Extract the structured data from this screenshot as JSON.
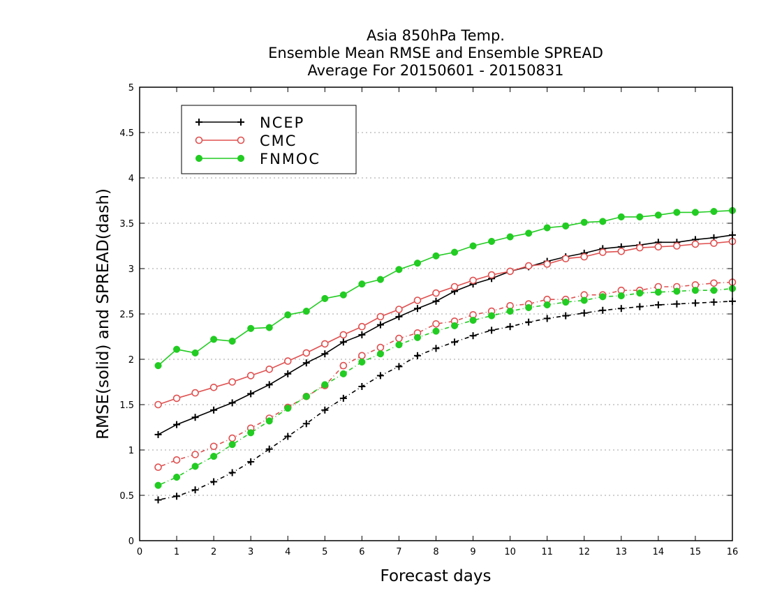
{
  "chart_data": {
    "type": "line",
    "title_lines": [
      "Asia 850hPa Temp.",
      "Ensemble Mean RMSE and Ensemble SPREAD",
      "Average For 20150601 - 20150831"
    ],
    "xlabel": "Forecast days",
    "ylabel": "RMSE(solid) and SPREAD(dash)",
    "xlim": [
      0,
      16
    ],
    "ylim": [
      0,
      5
    ],
    "x_ticks": [
      "0",
      "1",
      "2",
      "3",
      "4",
      "5",
      "6",
      "7",
      "8",
      "9",
      "10",
      "11",
      "12",
      "13",
      "14",
      "15",
      "16"
    ],
    "y_ticks": [
      "0",
      "0.5",
      "1",
      "1.5",
      "2",
      "2.5",
      "3",
      "3.5",
      "4",
      "4.5",
      "5"
    ],
    "grid": true,
    "legend_position": "top-left",
    "x": [
      0.5,
      1,
      1.5,
      2,
      2.5,
      3,
      3.5,
      4,
      4.5,
      5,
      5.5,
      6,
      6.5,
      7,
      7.5,
      8,
      8.5,
      9,
      9.5,
      10,
      10.5,
      11,
      11.5,
      12,
      12.5,
      13,
      13.5,
      14,
      14.5,
      15,
      15.5,
      16
    ],
    "series": [
      {
        "name": "NCEP",
        "color": "#000000",
        "marker": "plus",
        "rmse": [
          1.17,
          1.28,
          1.36,
          1.44,
          1.52,
          1.62,
          1.72,
          1.84,
          1.96,
          2.06,
          2.19,
          2.27,
          2.38,
          2.47,
          2.56,
          2.64,
          2.75,
          2.83,
          2.89,
          2.97,
          3.02,
          3.08,
          3.13,
          3.17,
          3.22,
          3.24,
          3.26,
          3.29,
          3.29,
          3.32,
          3.34,
          3.37
        ],
        "spread": [
          0.45,
          0.49,
          0.56,
          0.65,
          0.75,
          0.87,
          1.01,
          1.15,
          1.29,
          1.44,
          1.57,
          1.7,
          1.82,
          1.92,
          2.04,
          2.12,
          2.19,
          2.26,
          2.32,
          2.36,
          2.41,
          2.45,
          2.48,
          2.51,
          2.54,
          2.56,
          2.58,
          2.6,
          2.61,
          2.62,
          2.63,
          2.64
        ]
      },
      {
        "name": "CMC",
        "color": "#e05050",
        "marker": "open-circle",
        "rmse": [
          1.5,
          1.57,
          1.63,
          1.69,
          1.75,
          1.82,
          1.89,
          1.98,
          2.07,
          2.17,
          2.27,
          2.36,
          2.47,
          2.55,
          2.65,
          2.73,
          2.8,
          2.87,
          2.93,
          2.97,
          3.03,
          3.05,
          3.11,
          3.13,
          3.18,
          3.19,
          3.23,
          3.24,
          3.25,
          3.27,
          3.28,
          3.3
        ],
        "spread": [
          0.81,
          0.89,
          0.95,
          1.04,
          1.13,
          1.24,
          1.35,
          1.47,
          1.59,
          1.71,
          1.93,
          2.04,
          2.13,
          2.23,
          2.29,
          2.39,
          2.42,
          2.49,
          2.53,
          2.59,
          2.61,
          2.66,
          2.66,
          2.71,
          2.71,
          2.76,
          2.76,
          2.8,
          2.8,
          2.82,
          2.84,
          2.85
        ]
      },
      {
        "name": "FNMOC",
        "color": "#22cc22",
        "marker": "filled-circle",
        "rmse": [
          1.93,
          2.11,
          2.07,
          2.22,
          2.2,
          2.34,
          2.35,
          2.49,
          2.53,
          2.67,
          2.71,
          2.83,
          2.88,
          2.99,
          3.06,
          3.14,
          3.18,
          3.25,
          3.3,
          3.35,
          3.39,
          3.45,
          3.47,
          3.51,
          3.52,
          3.57,
          3.57,
          3.59,
          3.62,
          3.62,
          3.63,
          3.64
        ],
        "spread": [
          0.61,
          0.7,
          0.82,
          0.93,
          1.06,
          1.19,
          1.32,
          1.46,
          1.59,
          1.72,
          1.84,
          1.97,
          2.06,
          2.16,
          2.24,
          2.31,
          2.37,
          2.43,
          2.48,
          2.53,
          2.57,
          2.6,
          2.63,
          2.65,
          2.69,
          2.7,
          2.73,
          2.74,
          2.75,
          2.76,
          2.76,
          2.78
        ]
      }
    ]
  }
}
